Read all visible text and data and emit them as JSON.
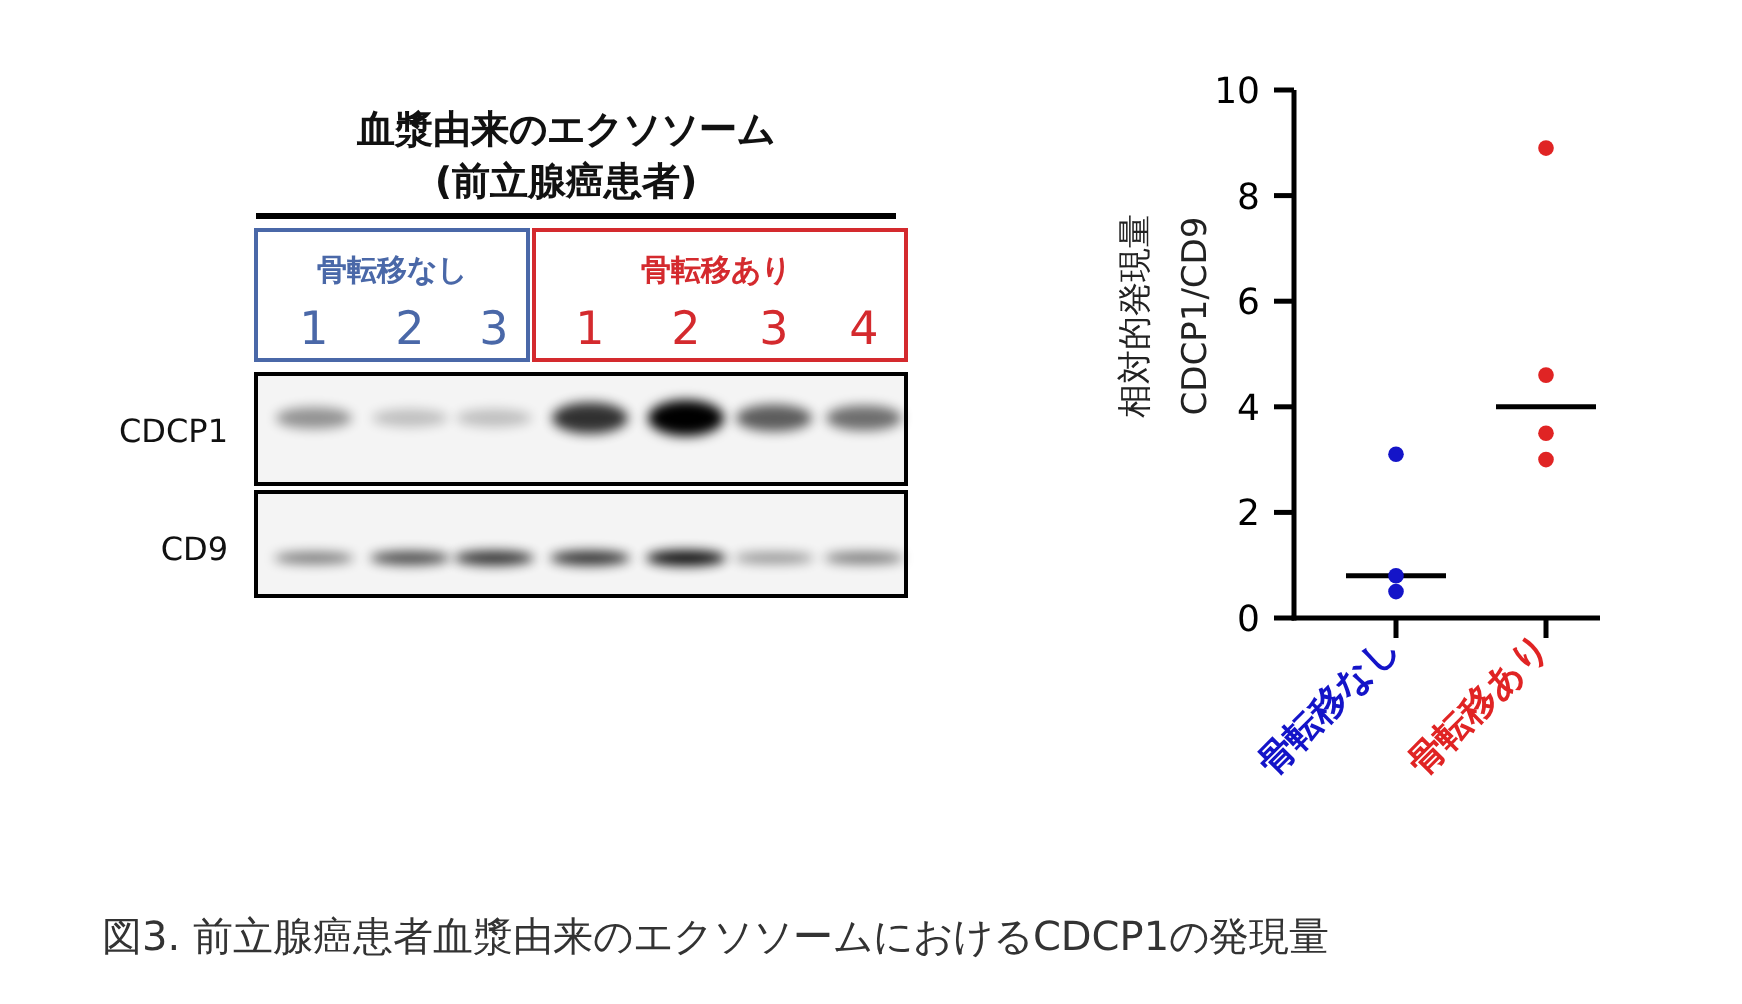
{
  "chart_data": {
    "type": "scatter",
    "ylabel": "相対的発現量\nCDCP1/CD9",
    "categories": [
      "骨転移なし",
      "骨転移あり"
    ],
    "ylim": [
      0,
      10
    ],
    "yticks": [
      0,
      2,
      4,
      6,
      8,
      10
    ],
    "marker": "circle",
    "series": [
      {
        "color": "#1414c8",
        "x": [
          "骨転移なし",
          "骨転移なし",
          "骨転移なし"
        ],
        "values": [
          3.1,
          0.5,
          0.8
        ]
      },
      {
        "color": "#e02424",
        "x": [
          "骨転移あり",
          "骨転移あり",
          "骨転移あり",
          "骨転移あり"
        ],
        "values": [
          8.9,
          4.6,
          3.5,
          3.0
        ]
      }
    ],
    "ref_lines": [
      {
        "axis": "y",
        "value": 0.8,
        "color": "#000000"
      },
      {
        "axis": "y",
        "value": 4.0,
        "color": "#000000"
      }
    ],
    "annotations": [
      "血漿由来のエクソソーム",
      "(前立腺癌患者)",
      "骨転移なし",
      "1",
      "2",
      "3",
      "骨転移あり",
      "1",
      "2",
      "3",
      "4",
      "CDCP1",
      "CD9",
      "図3.  前立腺癌患者血漿由来のエクソソームにおけるCDCP1の発現量"
    ]
  }
}
